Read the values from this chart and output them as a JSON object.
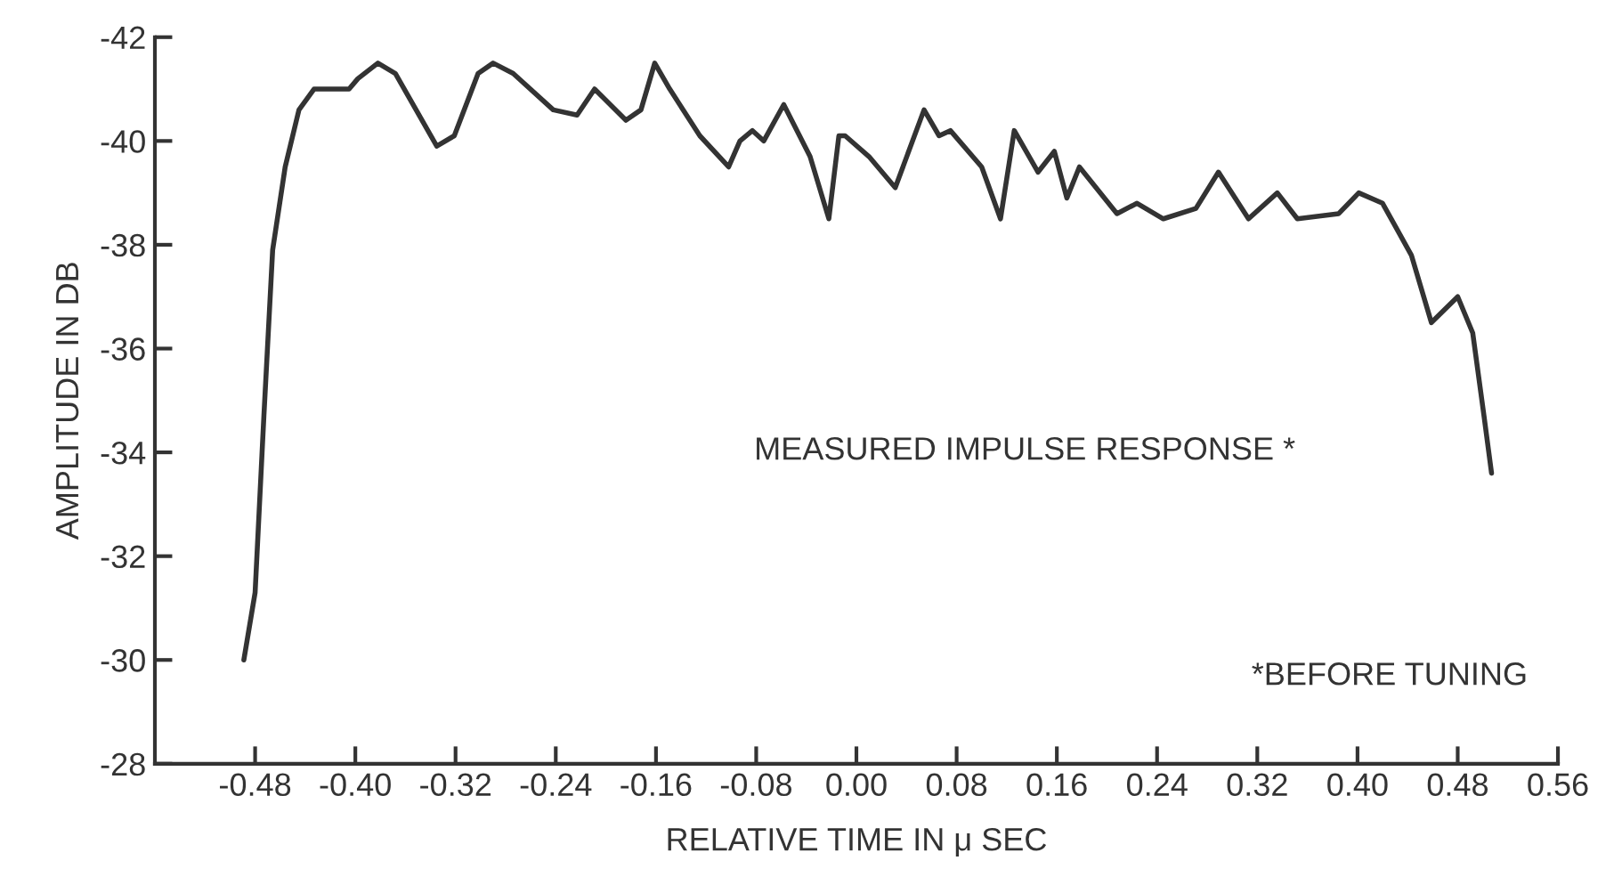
{
  "chart_data": {
    "type": "line",
    "xlabel": "RELATIVE TIME IN μ SEC",
    "ylabel": "AMPLITUDE IN DB",
    "annotations": [
      "MEASURED IMPULSE RESPONSE *",
      "*BEFORE TUNING"
    ],
    "xlim": [
      -0.56,
      0.56
    ],
    "ylim": [
      -28,
      -42
    ],
    "xticks": [
      -0.48,
      {
        "value": -0.4,
        "label": "-0.40"
      },
      -0.32,
      -0.24,
      -0.16,
      -0.08,
      {
        "value": 0.0,
        "label": "0.00"
      },
      0.08,
      0.16,
      0.24,
      0.32,
      {
        "value": 0.4,
        "label": "0.40"
      },
      0.48,
      0.56
    ],
    "yticks": [
      -42,
      -40,
      -38,
      -36,
      -34,
      -32,
      -30,
      -28
    ],
    "grid": false,
    "marker": "none",
    "line_style": "solid",
    "series": [
      {
        "color": "#333333",
        "x": [
          -0.489,
          -0.48,
          -0.473,
          -0.466,
          -0.456,
          -0.445,
          -0.433,
          -0.405,
          -0.398,
          -0.382,
          -0.368,
          -0.335,
          -0.321,
          -0.302,
          -0.29,
          -0.274,
          -0.242,
          -0.223,
          -0.209,
          -0.184,
          -0.172,
          -0.161,
          -0.149,
          -0.125,
          -0.102,
          -0.093,
          -0.083,
          -0.074,
          -0.058,
          -0.037,
          -0.022,
          -0.014,
          -0.009,
          0.01,
          0.031,
          0.054,
          0.066,
          0.075,
          0.1,
          0.115,
          0.126,
          0.145,
          0.158,
          0.168,
          0.178,
          0.208,
          0.224,
          0.245,
          0.271,
          0.289,
          0.313,
          0.336,
          0.352,
          0.385,
          0.401,
          0.42,
          0.443,
          0.459,
          0.48,
          0.492,
          0.501,
          0.507
        ],
        "values": [
          -30.0,
          -31.3,
          -34.7,
          -37.9,
          -39.5,
          -40.6,
          -41.0,
          -41.0,
          -41.2,
          -41.5,
          -41.3,
          -39.9,
          -40.1,
          -41.3,
          -41.5,
          -41.3,
          -40.6,
          -40.5,
          -41.0,
          -40.4,
          -40.6,
          -41.5,
          -41.0,
          -40.1,
          -39.5,
          -40.0,
          -40.2,
          -40.0,
          -40.7,
          -39.7,
          -38.5,
          -40.1,
          -40.1,
          -39.7,
          -39.1,
          -40.6,
          -40.1,
          -40.2,
          -39.5,
          -38.5,
          -40.2,
          -39.4,
          -39.8,
          -38.9,
          -39.5,
          -38.6,
          -38.8,
          -38.5,
          -38.7,
          -39.4,
          -38.5,
          -39.0,
          -38.5,
          -38.6,
          -39.0,
          -38.8,
          -37.8,
          -36.5,
          -37.0,
          -36.3,
          -34.7,
          -33.6
        ]
      }
    ]
  }
}
